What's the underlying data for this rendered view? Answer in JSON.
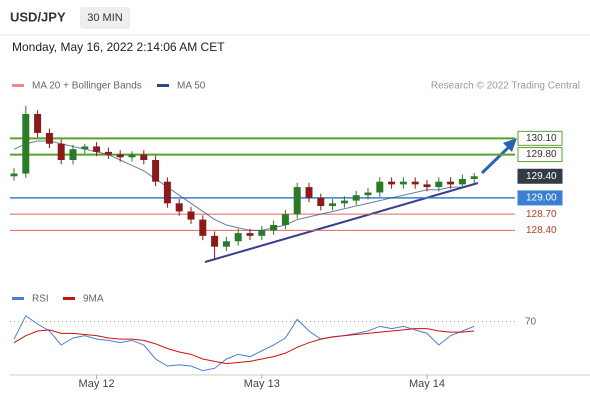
{
  "chart_data": {
    "type": "candlestick",
    "title": "USD/JPY",
    "timeframe": "30 MIN",
    "subtitle": "Monday, May 16, 2022 2:14:06 AM CET",
    "credit": "Research © 2022 Trading Central",
    "legend": [
      {
        "name": "MA 20 + Bollinger Bands",
        "color": "#e88a8a"
      },
      {
        "name": "MA 50",
        "color": "#2b4a7a"
      }
    ],
    "up_color": "#2a7a2a",
    "down_color": "#8b1a1a",
    "categories": [
      null,
      null,
      null,
      null,
      null,
      null,
      null,
      "May 12",
      null,
      null,
      null,
      null,
      null,
      null,
      null,
      null,
      null,
      null,
      null,
      null,
      null,
      "May 13",
      null,
      null,
      null,
      null,
      null,
      null,
      null,
      null,
      null,
      null,
      null,
      null,
      null,
      "May 14",
      null,
      null,
      null,
      null
    ],
    "open": [
      129.4,
      129.45,
      130.55,
      130.2,
      130.0,
      129.7,
      129.9,
      129.95,
      129.85,
      129.8,
      129.75,
      129.8,
      129.7,
      129.3,
      128.9,
      128.75,
      128.6,
      128.3,
      128.1,
      128.2,
      128.35,
      128.3,
      128.4,
      128.5,
      128.7,
      129.2,
      129.0,
      128.85,
      128.9,
      128.95,
      129.05,
      129.1,
      129.3,
      129.25,
      129.3,
      129.25,
      129.2,
      129.3,
      129.25,
      129.35
    ],
    "high": [
      129.55,
      130.7,
      130.62,
      130.28,
      130.08,
      129.98,
      130.0,
      130.03,
      129.93,
      129.88,
      129.86,
      129.88,
      129.78,
      129.38,
      128.98,
      128.83,
      128.68,
      128.38,
      128.28,
      128.43,
      128.43,
      128.48,
      128.58,
      128.78,
      129.28,
      129.28,
      129.08,
      128.98,
      129.03,
      129.13,
      129.18,
      129.38,
      129.38,
      129.38,
      129.38,
      129.33,
      129.38,
      129.38,
      129.43,
      129.46
    ],
    "low": [
      129.32,
      129.37,
      130.12,
      129.92,
      129.62,
      129.62,
      129.82,
      129.77,
      129.72,
      129.67,
      129.67,
      129.62,
      129.22,
      128.82,
      128.67,
      128.52,
      128.22,
      127.85,
      128.02,
      128.12,
      128.22,
      128.22,
      128.32,
      128.42,
      128.62,
      128.92,
      128.77,
      128.77,
      128.82,
      128.87,
      128.97,
      129.02,
      129.17,
      129.17,
      129.17,
      129.12,
      129.12,
      129.17,
      129.17,
      129.27
    ],
    "close": [
      129.45,
      130.55,
      130.2,
      130.0,
      129.7,
      129.9,
      129.95,
      129.85,
      129.8,
      129.75,
      129.8,
      129.7,
      129.3,
      128.9,
      128.75,
      128.6,
      128.3,
      128.1,
      128.2,
      128.35,
      128.3,
      128.4,
      128.5,
      128.7,
      129.2,
      129.0,
      128.85,
      128.9,
      128.95,
      129.05,
      129.1,
      129.3,
      129.25,
      129.3,
      129.25,
      129.2,
      129.3,
      129.25,
      129.35,
      129.4
    ],
    "ma50": [
      129.9,
      130.0,
      130.05,
      130.05,
      130.0,
      129.95,
      129.9,
      129.85,
      129.8,
      129.7,
      129.6,
      129.5,
      129.35,
      129.2,
      129.05,
      128.9,
      128.75,
      128.6,
      128.5,
      128.45,
      128.4,
      128.4,
      128.45,
      128.5,
      128.6,
      128.65,
      128.7,
      128.75,
      128.8,
      128.85,
      128.9,
      128.95,
      129.0,
      129.05,
      129.1,
      129.15,
      129.15,
      129.2,
      129.2,
      129.25
    ],
    "ylim": [
      127.3,
      130.9
    ],
    "levels": [
      {
        "value": 130.1,
        "label": "130.10",
        "style": "resistance"
      },
      {
        "value": 129.8,
        "label": "129.80",
        "style": "resistance"
      },
      {
        "value": 129.4,
        "label": "129.40",
        "style": "current"
      },
      {
        "value": 129.0,
        "label": "129.00",
        "style": "pivot"
      },
      {
        "value": 128.7,
        "label": "128.70",
        "style": "support"
      },
      {
        "value": 128.4,
        "label": "128.40",
        "style": "support"
      }
    ],
    "rsi": {
      "series": [
        {
          "name": "RSI",
          "color": "#4a7fd4",
          "values": [
            55,
            75,
            68,
            62,
            50,
            56,
            58,
            55,
            54,
            52,
            54,
            50,
            38,
            32,
            33,
            32,
            28,
            30,
            38,
            42,
            40,
            45,
            50,
            56,
            72,
            62,
            55,
            57,
            58,
            60,
            62,
            66,
            64,
            66,
            63,
            60,
            50,
            58,
            62,
            66
          ]
        },
        {
          "name": "9MA",
          "color": "#cc1111",
          "values": [
            52,
            58,
            62,
            63,
            60,
            60,
            59,
            58,
            56,
            55,
            55,
            54,
            51,
            47,
            44,
            42,
            38,
            36,
            34,
            35,
            36,
            38,
            40,
            43,
            48,
            52,
            55,
            57,
            58,
            59,
            60,
            61,
            62,
            63,
            64,
            64,
            62,
            61,
            61,
            62
          ]
        }
      ],
      "ylim": [
        20,
        80
      ],
      "yticks": [
        70
      ]
    }
  }
}
